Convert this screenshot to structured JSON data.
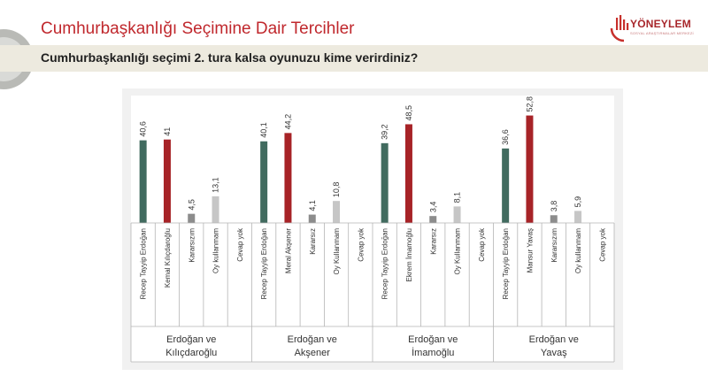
{
  "header": {
    "title": "Cumhurbaşkanlığı Seçimine Dair Tercihler",
    "question": "Cumhurbaşkanlığı seçimi 2. tura kalsa oyunuzu kime verirdiniz?"
  },
  "logo": {
    "name": "YÖNEYLEM",
    "tagline": "SOSYAL ARAŞTIRMALAR MERKEZİ"
  },
  "colors": {
    "title": "#c0282d",
    "erdogan": "#416b5f",
    "opponent": "#a72327",
    "undecided": "#8c8c8c",
    "no_vote": "#c6c6c6"
  },
  "chart_data": {
    "type": "bar",
    "ylim": [
      0,
      60
    ],
    "groups": [
      {
        "label": [
          "Erdoğan ve",
          "Kılıçdaroğlu"
        ],
        "bars": [
          {
            "category": "Recep Tayyip Erdoğan",
            "value": 40.6,
            "label": "40,6",
            "color": "#416b5f"
          },
          {
            "category": "Kemal Kılıçdaroğlu",
            "value": 41,
            "label": "41",
            "color": "#a72327"
          },
          {
            "category": "Kararsızım",
            "value": 4.5,
            "label": "4,5",
            "color": "#8c8c8c"
          },
          {
            "category": "Oy kullanmam",
            "value": 13.1,
            "label": "13,1",
            "color": "#c6c6c6"
          },
          {
            "category": "Cevap yok",
            "value": null,
            "label": "",
            "color": "#c6c6c6"
          }
        ]
      },
      {
        "label": [
          "Erdoğan ve",
          "Akşener"
        ],
        "bars": [
          {
            "category": "Recep Tayyip Erdoğan",
            "value": 40.1,
            "label": "40,1",
            "color": "#416b5f"
          },
          {
            "category": "Meral Akşener",
            "value": 44.2,
            "label": "44,2",
            "color": "#a72327"
          },
          {
            "category": "Kararsız",
            "value": 4.1,
            "label": "4,1",
            "color": "#8c8c8c"
          },
          {
            "category": "Oy Kullanmam",
            "value": 10.8,
            "label": "10,8",
            "color": "#c6c6c6"
          },
          {
            "category": "Cevap yok",
            "value": null,
            "label": "",
            "color": "#c6c6c6"
          }
        ]
      },
      {
        "label": [
          "Erdoğan ve",
          "İmamoğlu"
        ],
        "bars": [
          {
            "category": "Recep Tayyip Erdoğan",
            "value": 39.2,
            "label": "39,2",
            "color": "#416b5f"
          },
          {
            "category": "Ekrem İmamoğlu",
            "value": 48.5,
            "label": "48,5",
            "color": "#a72327"
          },
          {
            "category": "Kararsız",
            "value": 3.4,
            "label": "3,4",
            "color": "#8c8c8c"
          },
          {
            "category": "Oy Kullanmam",
            "value": 8.1,
            "label": "8,1",
            "color": "#c6c6c6"
          },
          {
            "category": "Cevap yok",
            "value": null,
            "label": "",
            "color": "#c6c6c6"
          }
        ]
      },
      {
        "label": [
          "Erdoğan ve",
          "Yavaş"
        ],
        "bars": [
          {
            "category": "Recep Tayyip Erdoğan",
            "value": 36.6,
            "label": "36,6",
            "color": "#416b5f"
          },
          {
            "category": "Mansur Yavaş",
            "value": 52.8,
            "label": "52,8",
            "color": "#a72327"
          },
          {
            "category": "Kararsızım",
            "value": 3.8,
            "label": "3,8",
            "color": "#8c8c8c"
          },
          {
            "category": "Oy kullanmam",
            "value": 5.9,
            "label": "5,9",
            "color": "#c6c6c6"
          },
          {
            "category": "Cevap yok",
            "value": null,
            "label": "",
            "color": "#c6c6c6"
          }
        ]
      }
    ]
  }
}
